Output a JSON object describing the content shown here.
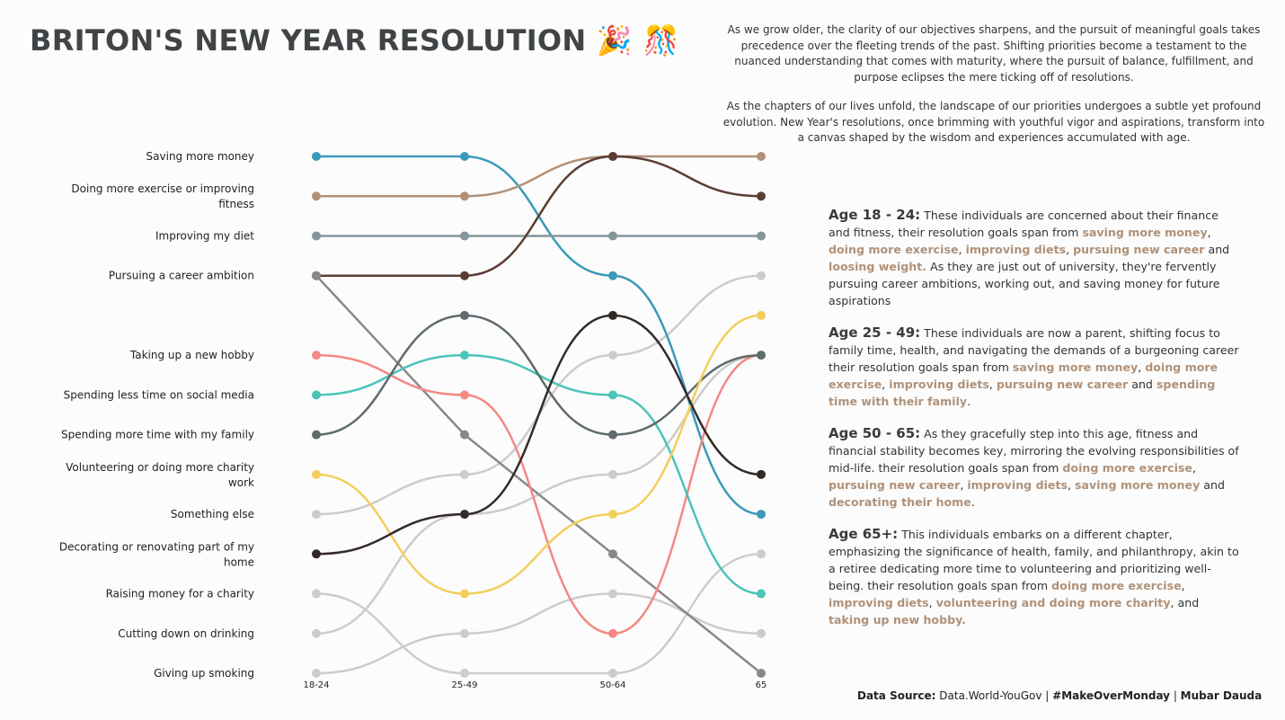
{
  "title": "BRITON'S NEW YEAR RESOLUTION 🎉 🎊",
  "intro": [
    "As we grow older, the clarity of our objectives sharpens, and the pursuit of meaningful goals takes precedence over the fleeting trends of the past. Shifting priorities become a testament to the nuanced understanding that comes with maturity, where the pursuit of balance, fulfillment, and purpose eclipses the mere ticking off of resolutions.",
    "As the chapters of our lives unfold, the landscape of our priorities undergoes a subtle yet profound evolution. New Year's resolutions, once brimming with youthful vigor and aspirations, transform into a canvas shaped by the wisdom and experiences accumulated with age."
  ],
  "panel": [
    {
      "head": "Age 18 - 24:",
      "segments": [
        {
          "t": " These individuals are concerned about their finance and fitness, their resolution goals span from ",
          "b": false
        },
        {
          "t": "saving more money",
          "b": true
        },
        {
          "t": ", ",
          "b": false
        },
        {
          "t": "doing more exercise",
          "b": true
        },
        {
          "t": ", ",
          "b": false
        },
        {
          "t": "improving diets",
          "b": true
        },
        {
          "t": ", ",
          "b": false
        },
        {
          "t": "pursuing new career",
          "b": true
        },
        {
          "t": " and ",
          "b": false
        },
        {
          "t": "loosing weight.",
          "b": true
        },
        {
          "t": " As they are just out of university, they're fervently pursuing career ambitions, working out, and saving money for future aspirations",
          "b": false
        }
      ]
    },
    {
      "head": "Age 25 - 49:",
      "segments": [
        {
          "t": " These individuals are now a parent, shifting focus to family time, health, and navigating the demands of a burgeoning career their resolution goals span from ",
          "b": false
        },
        {
          "t": "saving more money",
          "b": true
        },
        {
          "t": ", ",
          "b": false
        },
        {
          "t": "doing more exercise",
          "b": true
        },
        {
          "t": ", ",
          "b": false
        },
        {
          "t": "improving diets",
          "b": true
        },
        {
          "t": ", ",
          "b": false
        },
        {
          "t": "pursuing new career",
          "b": true
        },
        {
          "t": " and ",
          "b": false
        },
        {
          "t": "spending time with their family",
          "b": true
        },
        {
          "t": ".",
          "b": false
        }
      ]
    },
    {
      "head": "Age 50 - 65:",
      "segments": [
        {
          "t": " As they gracefully step into this age, fitness and financial stability becomes key, mirroring the evolving responsibilities of mid-life. their resolution goals span from ",
          "b": false
        },
        {
          "t": "doing more exercise",
          "b": true
        },
        {
          "t": ", ",
          "b": false
        },
        {
          "t": "pursuing new career",
          "b": true
        },
        {
          "t": ", ",
          "b": false
        },
        {
          "t": "improving diets",
          "b": true
        },
        {
          "t": ", ",
          "b": false
        },
        {
          "t": "saving more money",
          "b": true
        },
        {
          "t": " and ",
          "b": false
        },
        {
          "t": "decorating their home",
          "b": true
        },
        {
          "t": ".",
          "b": false
        }
      ]
    },
    {
      "head": "Age 65+:",
      "segments": [
        {
          "t": "  This individuals embarks on a different chapter, emphasizing the significance of health, family, and philanthropy, akin to a retiree dedicating more time to volunteering and prioritizing well-being. their resolution goals span from ",
          "b": false
        },
        {
          "t": "doing more exercise",
          "b": true
        },
        {
          "t": ", ",
          "b": false
        },
        {
          "t": "improving diets",
          "b": true
        },
        {
          "t": ", ",
          "b": false
        },
        {
          "t": "volunteering and doing more charity",
          "b": true
        },
        {
          "t": ", and ",
          "b": false
        },
        {
          "t": "taking up new hobby.",
          "b": true
        }
      ]
    }
  ],
  "source": {
    "label": "Data Source:",
    "value": " Data.World-YouGov | ",
    "tag": "#MakeOverMonday",
    "sep": " | ",
    "author": "Mubar Dauda"
  },
  "chart_data": {
    "type": "line",
    "subtype": "bump",
    "categories": [
      "18-24",
      "25-49",
      "50-64",
      "65"
    ],
    "yaxis": "rank (1 = top)",
    "ylim": [
      1,
      14
    ],
    "grid": false,
    "legend": "none",
    "series": [
      {
        "name": "Saving more money",
        "ranks": [
          1,
          1,
          4,
          10
        ],
        "color": "#3a9ab9"
      },
      {
        "name": "Doing more exercise or improving fitness",
        "ranks": [
          2,
          2,
          1,
          1
        ],
        "color": "#b09178"
      },
      {
        "name": "Improving my diet",
        "ranks": [
          3,
          3,
          3,
          3
        ],
        "color": "#84969b"
      },
      {
        "name": "Pursuing a career ambition",
        "ranks": [
          4,
          4,
          1,
          2
        ],
        "color": "#5a3d33"
      },
      {
        "name": "",
        "ranks": [
          4,
          8,
          11,
          14
        ],
        "color": "#8a8886"
      },
      {
        "name": "Taking up a new hobby",
        "ranks": [
          6,
          7,
          13,
          6
        ],
        "color": "#f48883"
      },
      {
        "name": "Spending less time on social media",
        "ranks": [
          7,
          6,
          7,
          12
        ],
        "color": "#4bc4b8"
      },
      {
        "name": "Spending more time with my family",
        "ranks": [
          8,
          5,
          8,
          6
        ],
        "color": "#5f6b6d"
      },
      {
        "name": "Volunteering or doing more charity work",
        "ranks": [
          9,
          12,
          10,
          5
        ],
        "color": "#f2cf5b"
      },
      {
        "name": "Something else",
        "ranks": [
          10,
          9,
          6,
          4
        ],
        "color": "#cccccc"
      },
      {
        "name": "Decorating or renovating part of my home",
        "ranks": [
          11,
          10,
          5,
          9
        ],
        "color": "#332a28"
      },
      {
        "name": "Raising money for a charity",
        "ranks": [
          12,
          14,
          14,
          11
        ],
        "color": "#cccccc"
      },
      {
        "name": "Cutting down on drinking",
        "ranks": [
          13,
          10,
          9,
          6
        ],
        "color": "#cccccc"
      },
      {
        "name": "Giving up smoking",
        "ranks": [
          14,
          13,
          12,
          13
        ],
        "color": "#cccccc"
      }
    ],
    "labels": [
      {
        "text": [
          "Saving more money"
        ],
        "rank": 1
      },
      {
        "text": [
          "Doing more exercise or improving",
          "fitness"
        ],
        "rank": 2
      },
      {
        "text": [
          "Improving my diet"
        ],
        "rank": 3
      },
      {
        "text": [
          "Pursuing a career ambition"
        ],
        "rank": 4
      },
      {
        "text": [
          "Taking up a new hobby"
        ],
        "rank": 6
      },
      {
        "text": [
          "Spending less time on social media"
        ],
        "rank": 7
      },
      {
        "text": [
          "Spending more time with my family"
        ],
        "rank": 8
      },
      {
        "text": [
          "Volunteering or doing more charity",
          "work"
        ],
        "rank": 9
      },
      {
        "text": [
          "Something else"
        ],
        "rank": 10
      },
      {
        "text": [
          "Decorating or renovating part of my",
          "home"
        ],
        "rank": 11
      },
      {
        "text": [
          "Raising money for a charity"
        ],
        "rank": 12
      },
      {
        "text": [
          "Cutting down on drinking"
        ],
        "rank": 13
      },
      {
        "text": [
          "Giving up smoking"
        ],
        "rank": 14
      }
    ]
  }
}
